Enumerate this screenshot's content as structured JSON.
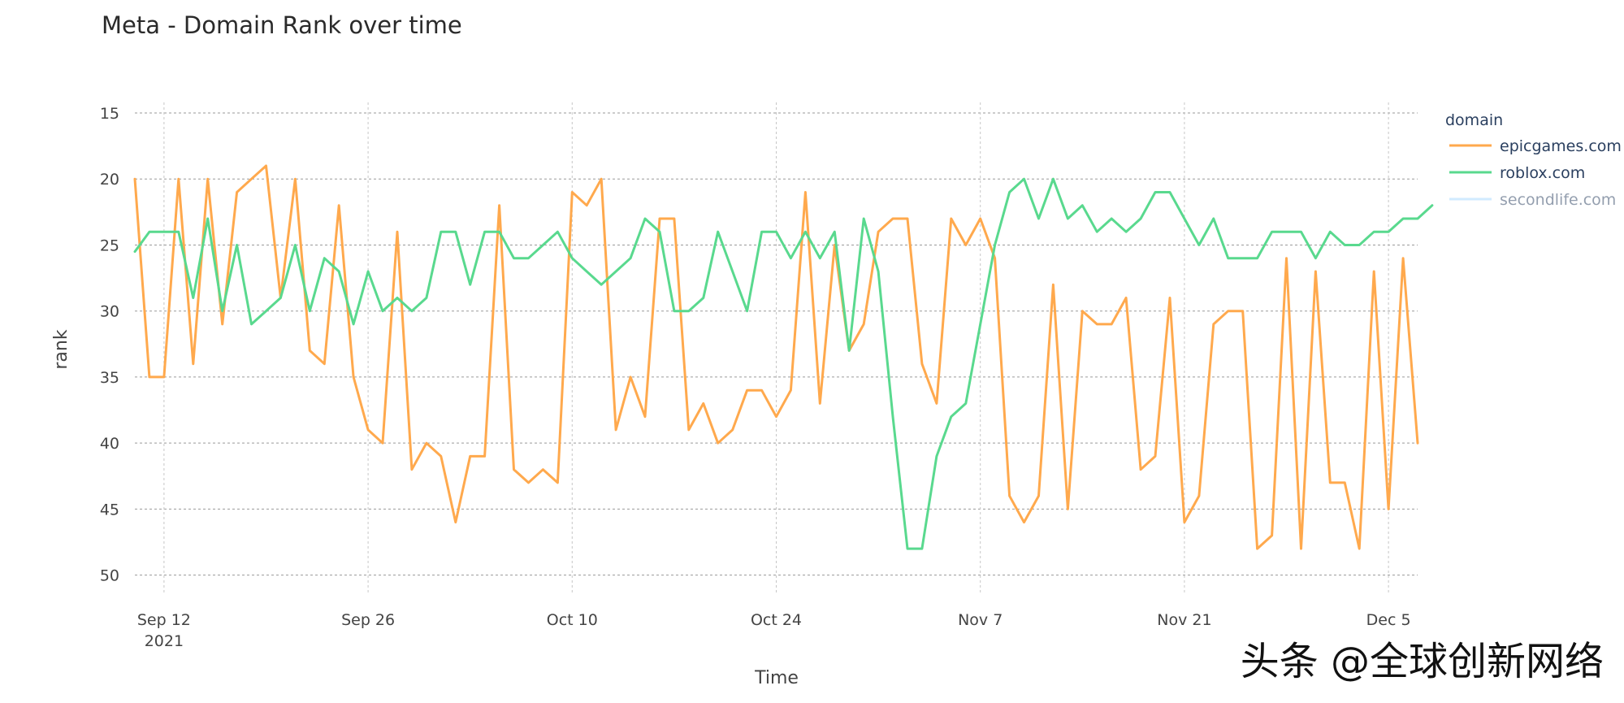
{
  "chart_data": {
    "type": "line",
    "title": "Meta - Domain Rank over time",
    "xlabel": "Time",
    "ylabel": "rank",
    "x_start": "2021-09-10",
    "x_end": "2021-12-07",
    "x_ticks": [
      {
        "date": "2021-09-12",
        "label": "Sep 12",
        "sublabel": "2021"
      },
      {
        "date": "2021-09-26",
        "label": "Sep 26",
        "sublabel": ""
      },
      {
        "date": "2021-10-10",
        "label": "Oct 10",
        "sublabel": ""
      },
      {
        "date": "2021-10-24",
        "label": "Oct 24",
        "sublabel": ""
      },
      {
        "date": "2021-11-07",
        "label": "Nov 7",
        "sublabel": ""
      },
      {
        "date": "2021-11-21",
        "label": "Nov 21",
        "sublabel": ""
      },
      {
        "date": "2021-12-05",
        "label": "Dec 5",
        "sublabel": ""
      }
    ],
    "y_ticks": [
      15,
      20,
      25,
      30,
      35,
      40,
      45,
      50
    ],
    "ylim": [
      51.5,
      14.2
    ],
    "y_reversed": true,
    "grid": true,
    "legend": {
      "title": "domain",
      "position": "right-top"
    },
    "series": [
      {
        "name": "epicgames.com",
        "color": "#ffa94d",
        "values": [
          20,
          35,
          35,
          20,
          34,
          20,
          31,
          21,
          20,
          19,
          29,
          20,
          33,
          34,
          22,
          35,
          39,
          40,
          24,
          42,
          40,
          41,
          46,
          41,
          41,
          22,
          42,
          43,
          42,
          43,
          21,
          22,
          20,
          39,
          35,
          38,
          23,
          23,
          39,
          37,
          40,
          39,
          36,
          36,
          38,
          36,
          21,
          37,
          25,
          33,
          31,
          24,
          23,
          23,
          34,
          37,
          23,
          25,
          23,
          26,
          44,
          46,
          44,
          28,
          45,
          30,
          31,
          31,
          29,
          42,
          41,
          29,
          46,
          44,
          31,
          30,
          30,
          48,
          47,
          26,
          48,
          27,
          43,
          43,
          48,
          27,
          45,
          26,
          40
        ]
      },
      {
        "name": "roblox.com",
        "color": "#59d98e",
        "values": [
          25.5,
          24,
          24,
          24,
          29,
          23,
          30,
          25,
          31,
          30,
          29,
          25,
          30,
          26,
          27,
          31,
          27,
          30,
          29,
          30,
          29,
          24,
          24,
          28,
          24,
          24,
          26,
          26,
          25,
          24,
          26,
          27,
          28,
          27,
          26,
          23,
          24,
          30,
          30,
          29,
          24,
          27,
          30,
          24,
          24,
          26,
          24,
          26,
          24,
          33,
          23,
          27,
          38,
          48,
          48,
          41,
          38,
          37,
          31,
          25,
          21,
          20,
          23,
          20,
          23,
          22,
          24,
          23,
          24,
          23,
          21,
          21,
          23,
          25,
          23,
          26,
          26,
          26,
          24,
          24,
          24,
          26,
          24,
          25,
          25,
          24,
          24,
          23,
          23,
          22
        ]
      },
      {
        "name": "secondlife.com",
        "color": "#a5d8ff",
        "values": []
      }
    ]
  },
  "watermark": "头条 @全球创新网络"
}
